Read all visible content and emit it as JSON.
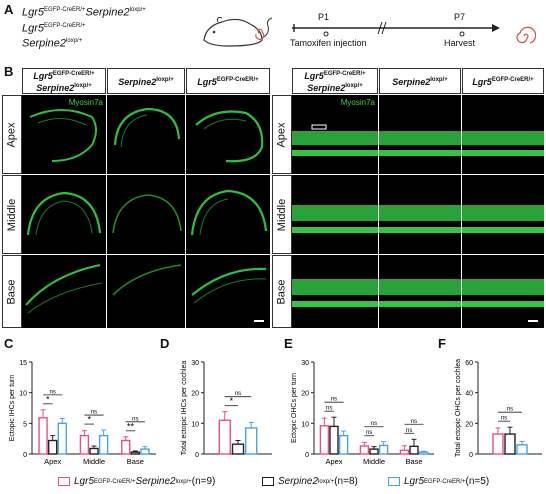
{
  "panels": {
    "A": "A",
    "B": "B",
    "C": "C",
    "D": "D",
    "E": "E",
    "F": "F"
  },
  "colors": {
    "pink": "#ec4c8b",
    "black": "#222222",
    "blue": "#4aa3e8",
    "green": "#3fd04e"
  },
  "panelA": {
    "g1_l1": "Lgr5",
    "g1_s1": "EGFP-CreER/+",
    "g1_l2": "Serpine2",
    "g1_s2": "loxp/+",
    "g2_l1": "Lgr5",
    "g2_s1": "EGFP-CreER/+",
    "g3_l1": "Serpine2",
    "g3_s1": "loxp/+",
    "p1": "P1",
    "p7": "P7",
    "tamox": "Tamoxifen injection",
    "harvest": "Harvest"
  },
  "headers": {
    "h1a": "Lgr5",
    "h1b": "EGFP-CreER/+",
    "h1c": "Serpine2",
    "h1d": "loxp/+",
    "h2a": "Serpine2",
    "h2b": "loxp/+",
    "h3a": "Lgr5",
    "h3b": "EGFP-CreER/+"
  },
  "rows": [
    "Apex",
    "Middle",
    "Base"
  ],
  "stain": "Myosin7a",
  "legend": {
    "l1a": "Lgr5",
    "l1b": "EGFP-CreER/+",
    "l1c": "Serpine2",
    "l1d": "loxp/+",
    "l1n": " (n=9)",
    "l2a": "Serpine2",
    "l2b": "loxp/+",
    "l2n": " (n=8)",
    "l3a": "Lgr5",
    "l3b": "EGFP-CreER/+",
    "l3n": " (n=5)"
  },
  "chart_data": [
    {
      "type": "bar",
      "id": "C",
      "ylabel": "Ectopic IHCs per turn",
      "categories": [
        "Apex",
        "Middle",
        "Base"
      ],
      "ylim": [
        0,
        15
      ],
      "yticks": [
        0,
        5,
        10,
        15
      ],
      "series": [
        {
          "values": [
            5.9,
            3.0,
            2.2
          ],
          "err": [
            1.3,
            0.8,
            0.6
          ]
        },
        {
          "values": [
            2.2,
            0.9,
            0.3
          ],
          "err": [
            0.8,
            0.4,
            0.2
          ]
        },
        {
          "values": [
            5.0,
            3.0,
            0.8
          ],
          "err": [
            0.8,
            0.9,
            0.4
          ]
        }
      ],
      "sig": [
        {
          "cat": 0,
          "a": 0,
          "b": 1,
          "t": "*"
        },
        {
          "cat": 0,
          "a": 0,
          "b": 2,
          "t": "ns"
        },
        {
          "cat": 1,
          "a": 0,
          "b": 1,
          "t": "*"
        },
        {
          "cat": 1,
          "a": 0,
          "b": 2,
          "t": "ns"
        },
        {
          "cat": 2,
          "a": 0,
          "b": 1,
          "t": "**"
        },
        {
          "cat": 2,
          "a": 0,
          "b": 2,
          "t": "ns"
        }
      ]
    },
    {
      "type": "bar",
      "id": "D",
      "ylabel": "Total ectopic IHCs per cochlea",
      "ylim": [
        0,
        30
      ],
      "yticks": [
        0,
        10,
        20,
        30
      ],
      "series": [
        {
          "values": [
            11.0
          ],
          "err": [
            2.8
          ]
        },
        {
          "values": [
            3.2
          ],
          "err": [
            1.2
          ]
        },
        {
          "values": [
            8.5
          ],
          "err": [
            1.8
          ]
        }
      ],
      "sig": [
        {
          "a": 0,
          "b": 1,
          "t": "*"
        },
        {
          "a": 0,
          "b": 2,
          "t": "ns"
        }
      ]
    },
    {
      "type": "bar",
      "id": "E",
      "ylabel": "Ectopic OHCs per turn",
      "categories": [
        "Apex",
        "Middle",
        "Base"
      ],
      "ylim": [
        0,
        30
      ],
      "yticks": [
        0,
        10,
        20,
        30
      ],
      "series": [
        {
          "values": [
            9.2,
            2.6,
            1.2
          ],
          "err": [
            2.5,
            1.2,
            1.5
          ]
        },
        {
          "values": [
            9.0,
            1.6,
            2.5
          ],
          "err": [
            3.0,
            0.8,
            2.3
          ]
        },
        {
          "values": [
            6.0,
            2.8,
            0.6
          ],
          "err": [
            1.5,
            1.2,
            0.3
          ]
        }
      ],
      "sig": [
        {
          "cat": 0,
          "a": 0,
          "b": 1,
          "t": "ns"
        },
        {
          "cat": 0,
          "a": 0,
          "b": 2,
          "t": "ns"
        },
        {
          "cat": 1,
          "a": 0,
          "b": 1,
          "t": "ns"
        },
        {
          "cat": 1,
          "a": 0,
          "b": 2,
          "t": "ns"
        },
        {
          "cat": 2,
          "a": 0,
          "b": 1,
          "t": "ns"
        },
        {
          "cat": 2,
          "a": 0,
          "b": 2,
          "t": "ns"
        }
      ]
    },
    {
      "type": "bar",
      "id": "F",
      "ylabel": "Total ectopic OHCs per cochlea",
      "ylim": [
        0,
        60
      ],
      "yticks": [
        0,
        20,
        40,
        60
      ],
      "series": [
        {
          "values": [
            13.0
          ],
          "err": [
            4.0
          ]
        },
        {
          "values": [
            13.0
          ],
          "err": [
            4.5
          ]
        },
        {
          "values": [
            6.0
          ],
          "err": [
            2.2
          ]
        }
      ],
      "sig": [
        {
          "a": 0,
          "b": 1,
          "t": "ns"
        },
        {
          "a": 0,
          "b": 2,
          "t": "ns"
        }
      ]
    }
  ]
}
